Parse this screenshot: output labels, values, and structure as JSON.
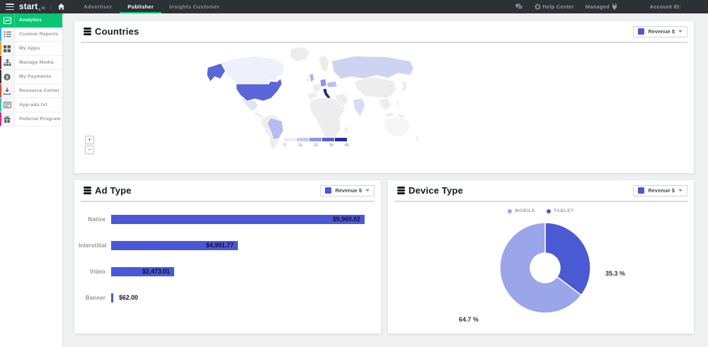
{
  "topbar": {
    "logo_main": "start",
    "logo_suffix": "io",
    "tabs": [
      {
        "label": "Advertiser"
      },
      {
        "label": "Publisher"
      },
      {
        "label": "Insights Customer"
      }
    ],
    "help_center_label": "Help Center",
    "managed_label": "Managed",
    "account_id_label": "Account ID:"
  },
  "sidebar": {
    "items": [
      {
        "label": "Analytics",
        "icon": "analytics-chart-icon",
        "accent": "#09c675",
        "active": true
      },
      {
        "label": "Custom Reports",
        "icon": "list-icon",
        "accent": "#2bb3e8"
      },
      {
        "label": "My Apps",
        "icon": "grid-icon",
        "accent": "#f5a623"
      },
      {
        "label": "Manage Media",
        "icon": "sitemap-icon",
        "accent": "#7d2b3a"
      },
      {
        "label": "My Payments",
        "icon": "dollar-circle-icon",
        "accent": "#33383d"
      },
      {
        "label": "Resource Center",
        "icon": "download-icon",
        "accent": "#e8453c"
      },
      {
        "label": "App-ads.txt",
        "icon": "card-icon",
        "accent": "#35c4a8"
      },
      {
        "label": "Referral Program",
        "icon": "gift-icon",
        "accent": "#e0218a"
      }
    ]
  },
  "countries_card": {
    "title": "Countries",
    "dropdown_value": "Revenue $",
    "zoom_in": "+",
    "zoom_out": "−",
    "legend": {
      "min_label": "-",
      "ticks": [
        "0",
        "1k",
        "2k",
        "3k",
        "4k"
      ]
    },
    "legend_colors": [
      "#eceefb",
      "#c6cbf3",
      "#8f99e5",
      "#5560d5",
      "#262ca0"
    ],
    "map_colors": {
      "default": "#ececec",
      "greenland": "#ececec",
      "canada": "#eef1fb",
      "alaska": "#5b66d9",
      "usa": "#5b66d9",
      "mexico": "#e0e4f8",
      "central_america": "#ececec",
      "south_america": "#ededed",
      "brazil": "#b6bdee",
      "scandinavia": "#ececec",
      "uk": "#aab2ea",
      "ireland": "#ececec",
      "france": "#ececf4",
      "spain": "#ececf4",
      "germany": "#8e98e4",
      "italy": "#23278f",
      "eastern_europe": "#bcc2ef",
      "russia": "#ced3f2",
      "africa": "#ededed",
      "madagascar": "#ededed",
      "middle_east": "#ededed",
      "india": "#d8dcf6",
      "china": "#ededed",
      "se_asia": "#ededed",
      "indonesia": "#ededed",
      "philippines": "#ededed",
      "japan": "#ececec",
      "australia": "#f6f6f8",
      "new_zealand": "#f0f0f0"
    },
    "chart_data": {
      "type": "heatmap",
      "subtype": "choropleth-world-map",
      "metric": "Revenue $",
      "scale_ticks": [
        "0",
        "1k",
        "2k",
        "3k",
        "4k"
      ],
      "countries_estimated_from_color": [
        {
          "name": "Italy",
          "value": 4000
        },
        {
          "name": "United States",
          "value": 2500
        },
        {
          "name": "Germany",
          "value": 1500
        },
        {
          "name": "Brazil",
          "value": 900
        },
        {
          "name": "United Kingdom",
          "value": 800
        },
        {
          "name": "Romania",
          "value": 650
        },
        {
          "name": "Russia",
          "value": 450
        },
        {
          "name": "India",
          "value": 350
        },
        {
          "name": "Mexico",
          "value": 150
        },
        {
          "name": "Canada",
          "value": 100
        }
      ]
    }
  },
  "ad_type_card": {
    "title": "Ad Type",
    "dropdown_value": "Revenue $",
    "chart_data": {
      "type": "bar",
      "orientation": "horizontal",
      "categories": [
        "Native",
        "Interstitial",
        "Video",
        "Banner"
      ],
      "values": [
        9960.02,
        4991.77,
        2473.01,
        62.0
      ],
      "value_labels": [
        "$9,960.02",
        "$4,991.77",
        "$2,473.01",
        "$62.00"
      ],
      "bar_color": "#4a58d8",
      "xlim": [
        0,
        9960.02
      ]
    }
  },
  "device_type_card": {
    "title": "Device Type",
    "dropdown_value": "Revenue $",
    "chart_data": {
      "type": "pie",
      "donut": true,
      "legend_position": "top",
      "series": [
        {
          "name": "MOBILE",
          "value": 64.7,
          "display": "64.7 %",
          "color": "#9ba5e9"
        },
        {
          "name": "TABLET",
          "value": 35.3,
          "display": "35.3 %",
          "color": "#4a5ad3"
        }
      ]
    }
  },
  "colors": {
    "topbar_bg": "#2c3136",
    "accent_green": "#00c573",
    "primary_blue": "#4a58d8",
    "page_bg": "#eff0f2"
  }
}
